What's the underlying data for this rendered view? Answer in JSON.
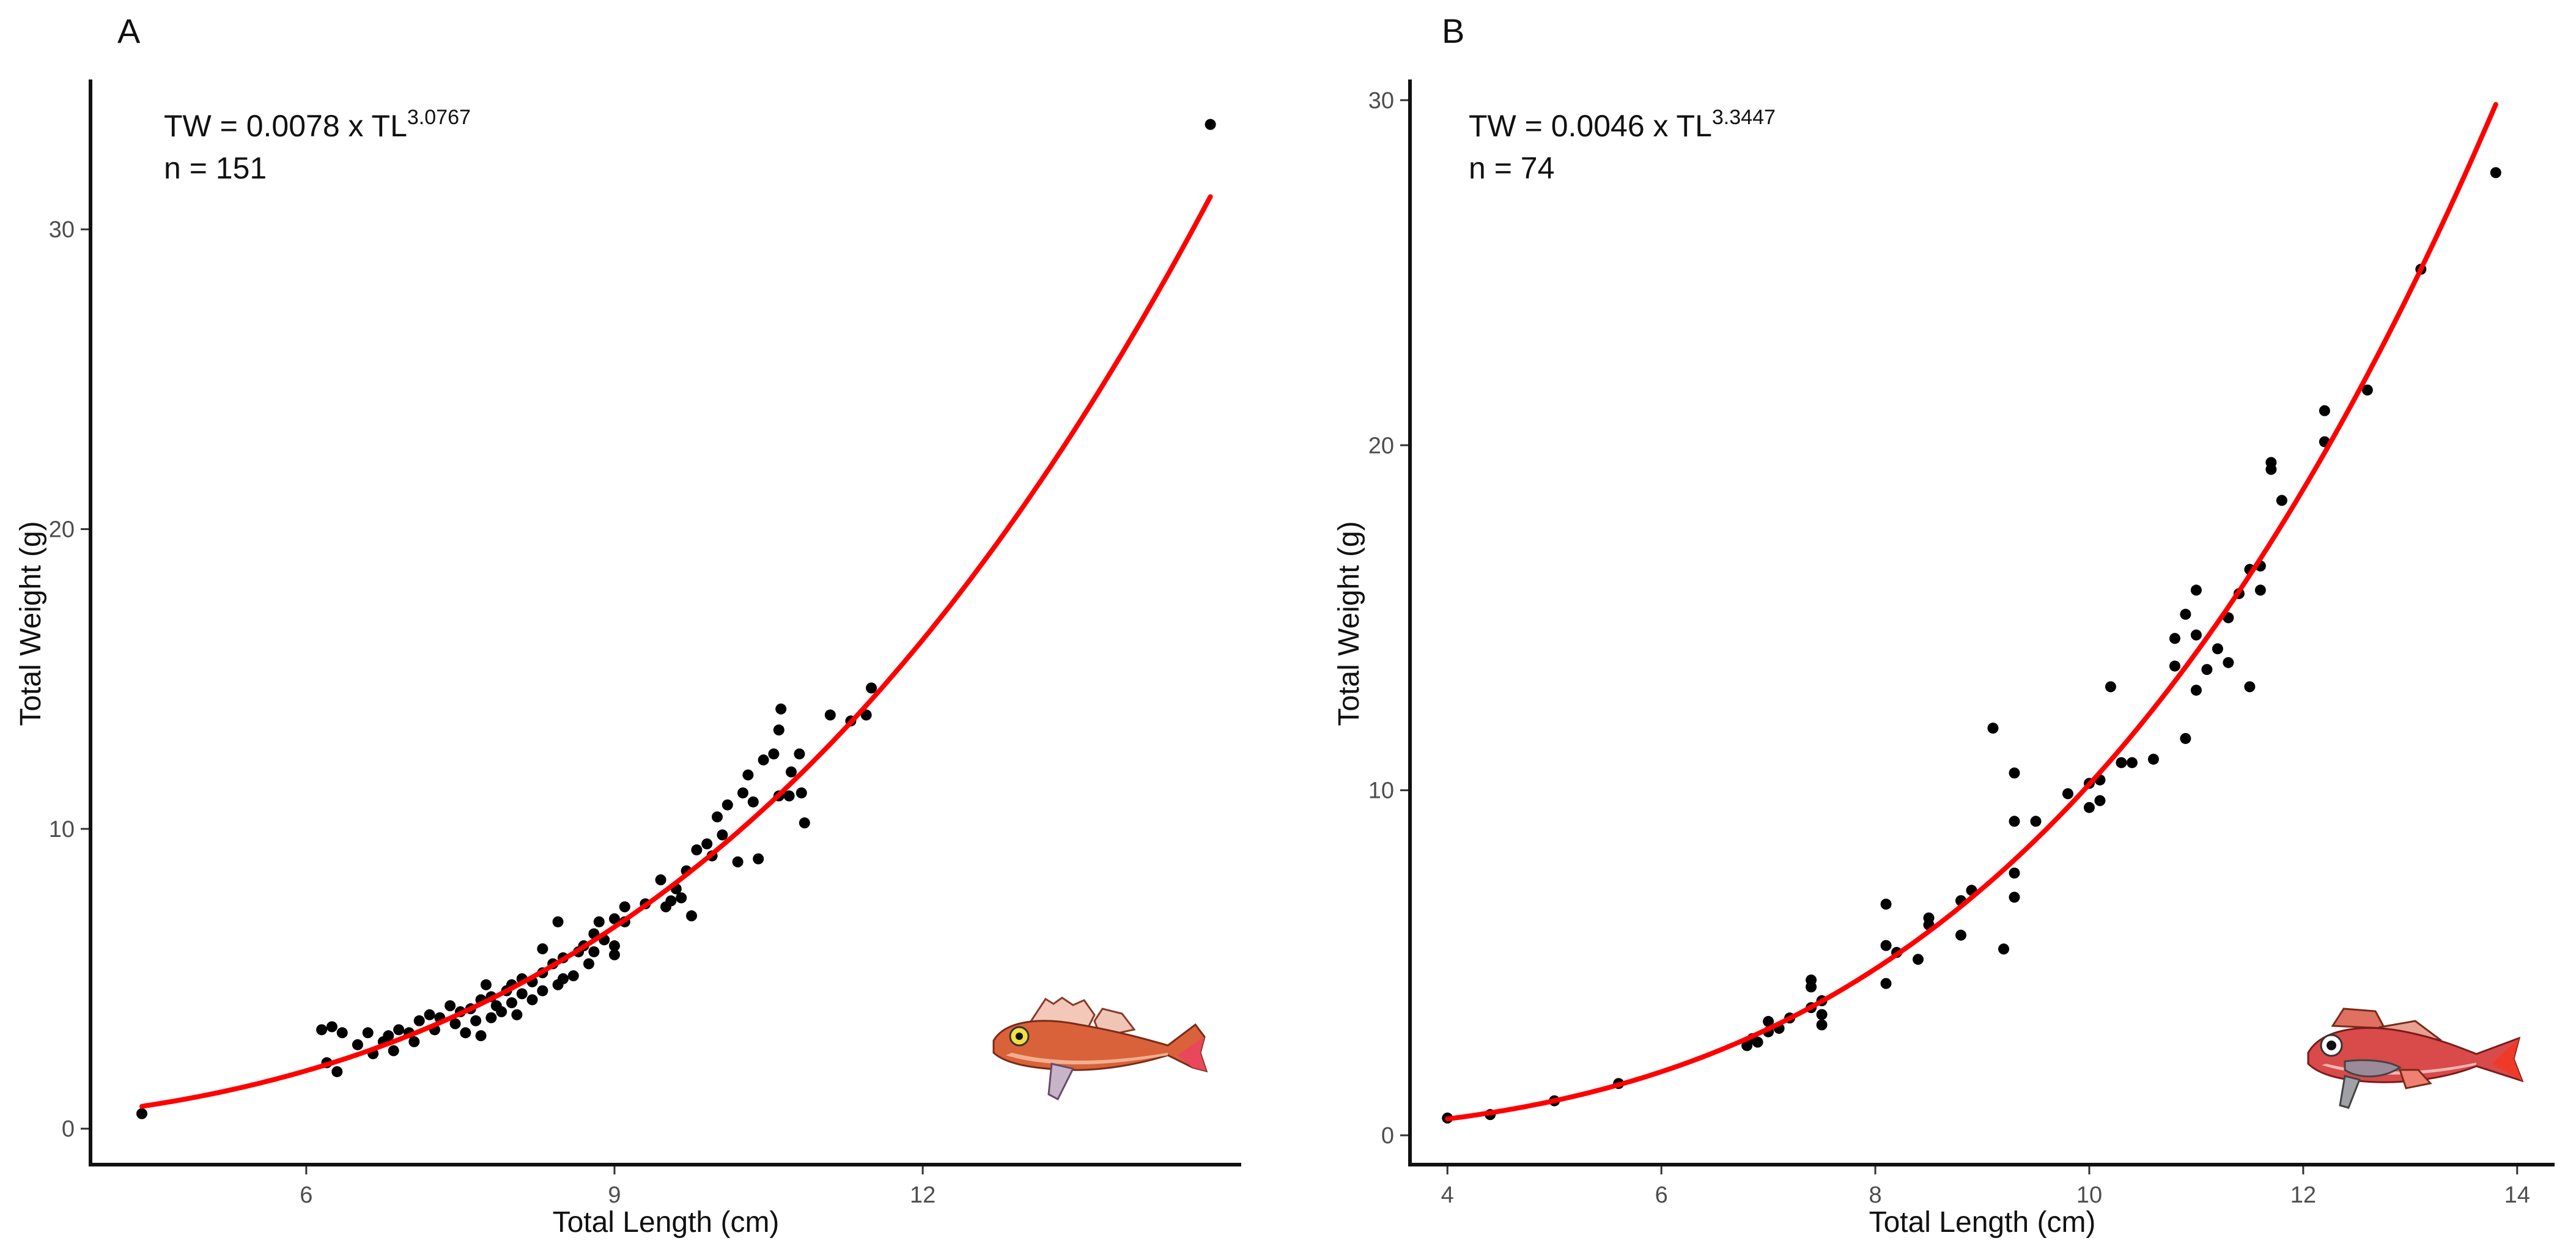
{
  "figure": {
    "palette": {
      "points": "#000000",
      "fit": "#ff0000",
      "fish_a": "#d9623a",
      "fish_b": "#d94a4a"
    }
  },
  "chart_data": [
    {
      "type": "scatter",
      "panel_label": "A",
      "xlabel": "Total Length (cm)",
      "ylabel": "Total Weight (g)",
      "xlim": [
        3.9,
        15.1
      ],
      "ylim": [
        -1.2,
        35.0
      ],
      "xticks": [
        6,
        9,
        12
      ],
      "yticks": [
        0,
        10,
        20,
        30
      ],
      "equation": {
        "prefix": "TW = 0.0078 x TL",
        "exponent": "3.0767"
      },
      "n_label": "n = 151",
      "fit": {
        "a": 0.0078,
        "b": 3.0767,
        "x_start": 4.4,
        "x_end": 14.8
      },
      "decoration_icon": "gurnard-fish-illustration",
      "points": [
        [
          4.4,
          0.5
        ],
        [
          6.15,
          3.3
        ],
        [
          6.2,
          2.2
        ],
        [
          6.25,
          3.4
        ],
        [
          6.3,
          1.9
        ],
        [
          6.35,
          3.2
        ],
        [
          6.5,
          2.8
        ],
        [
          6.6,
          3.2
        ],
        [
          6.65,
          2.5
        ],
        [
          6.75,
          2.9
        ],
        [
          6.8,
          3.1
        ],
        [
          6.85,
          2.6
        ],
        [
          6.9,
          3.3
        ],
        [
          7.0,
          3.2
        ],
        [
          7.05,
          2.9
        ],
        [
          7.1,
          3.6
        ],
        [
          7.2,
          3.8
        ],
        [
          7.25,
          3.3
        ],
        [
          7.3,
          3.7
        ],
        [
          7.4,
          4.1
        ],
        [
          7.45,
          3.5
        ],
        [
          7.5,
          3.9
        ],
        [
          7.55,
          3.2
        ],
        [
          7.6,
          4.0
        ],
        [
          7.65,
          3.6
        ],
        [
          7.7,
          3.1
        ],
        [
          7.7,
          4.3
        ],
        [
          7.75,
          4.8
        ],
        [
          7.8,
          3.7
        ],
        [
          7.8,
          4.4
        ],
        [
          7.85,
          4.1
        ],
        [
          7.9,
          3.9
        ],
        [
          7.95,
          4.6
        ],
        [
          8.0,
          4.2
        ],
        [
          8.0,
          4.8
        ],
        [
          8.05,
          3.8
        ],
        [
          8.1,
          5.0
        ],
        [
          8.1,
          4.5
        ],
        [
          8.2,
          4.3
        ],
        [
          8.2,
          4.9
        ],
        [
          8.3,
          5.2
        ],
        [
          8.3,
          4.6
        ],
        [
          8.3,
          6.0
        ],
        [
          8.4,
          5.5
        ],
        [
          8.45,
          4.8
        ],
        [
          8.45,
          6.9
        ],
        [
          8.5,
          5.0
        ],
        [
          8.5,
          5.7
        ],
        [
          8.6,
          5.1
        ],
        [
          8.65,
          5.9
        ],
        [
          8.7,
          6.1
        ],
        [
          8.75,
          5.5
        ],
        [
          8.8,
          6.5
        ],
        [
          8.8,
          5.9
        ],
        [
          8.85,
          6.9
        ],
        [
          8.9,
          6.3
        ],
        [
          9.0,
          6.1
        ],
        [
          9.0,
          7.0
        ],
        [
          9.0,
          5.8
        ],
        [
          9.1,
          6.9
        ],
        [
          9.1,
          7.4
        ],
        [
          9.3,
          7.5
        ],
        [
          9.45,
          8.3
        ],
        [
          9.5,
          7.4
        ],
        [
          9.55,
          7.6
        ],
        [
          9.6,
          8.0
        ],
        [
          9.65,
          7.7
        ],
        [
          9.7,
          8.6
        ],
        [
          9.75,
          7.1
        ],
        [
          9.8,
          9.3
        ],
        [
          9.9,
          9.5
        ],
        [
          9.95,
          9.1
        ],
        [
          10.0,
          10.4
        ],
        [
          10.05,
          9.8
        ],
        [
          10.1,
          10.8
        ],
        [
          10.2,
          8.9
        ],
        [
          10.25,
          11.2
        ],
        [
          10.3,
          11.8
        ],
        [
          10.35,
          10.9
        ],
        [
          10.4,
          9.0
        ],
        [
          10.45,
          12.3
        ],
        [
          10.55,
          12.5
        ],
        [
          10.6,
          11.1
        ],
        [
          10.6,
          13.3
        ],
        [
          10.62,
          14.0
        ],
        [
          10.7,
          11.1
        ],
        [
          10.72,
          11.9
        ],
        [
          10.8,
          12.5
        ],
        [
          10.82,
          11.2
        ],
        [
          10.85,
          10.2
        ],
        [
          11.1,
          13.8
        ],
        [
          11.3,
          13.6
        ],
        [
          11.45,
          13.8
        ],
        [
          11.5,
          14.7
        ],
        [
          14.8,
          33.5
        ]
      ]
    },
    {
      "type": "scatter",
      "panel_label": "B",
      "xlabel": "Total Length (cm)",
      "ylabel": "Total Weight (g)",
      "xlim": [
        3.65,
        14.35
      ],
      "ylim": [
        -0.85,
        30.6
      ],
      "xticks": [
        4,
        6,
        8,
        10,
        12,
        14
      ],
      "yticks": [
        0,
        10,
        20,
        30
      ],
      "equation": {
        "prefix": "TW = 0.0046 x TL",
        "exponent": "3.3447"
      },
      "n_label": "n = 74",
      "fit": {
        "a": 0.0046,
        "b": 3.3447,
        "x_start": 4.0,
        "x_end": 13.8
      },
      "decoration_icon": "redfish-illustration",
      "points": [
        [
          4.0,
          0.5
        ],
        [
          4.4,
          0.6
        ],
        [
          5.0,
          1.0
        ],
        [
          5.6,
          1.5
        ],
        [
          6.8,
          2.6
        ],
        [
          6.85,
          2.8
        ],
        [
          6.9,
          2.7
        ],
        [
          7.0,
          3.0
        ],
        [
          7.0,
          3.3
        ],
        [
          7.1,
          3.1
        ],
        [
          7.2,
          3.4
        ],
        [
          7.4,
          3.7
        ],
        [
          7.4,
          4.3
        ],
        [
          7.4,
          4.5
        ],
        [
          7.5,
          3.5
        ],
        [
          7.5,
          3.9
        ],
        [
          7.5,
          3.2
        ],
        [
          8.1,
          4.4
        ],
        [
          8.1,
          5.5
        ],
        [
          8.1,
          6.7
        ],
        [
          8.2,
          5.3
        ],
        [
          8.4,
          5.1
        ],
        [
          8.5,
          6.3
        ],
        [
          8.5,
          6.1
        ],
        [
          8.8,
          6.8
        ],
        [
          8.8,
          5.8
        ],
        [
          8.9,
          7.1
        ],
        [
          9.1,
          11.8
        ],
        [
          9.2,
          5.4
        ],
        [
          9.3,
          7.6
        ],
        [
          9.3,
          6.9
        ],
        [
          9.3,
          9.1
        ],
        [
          9.3,
          10.5
        ],
        [
          9.5,
          9.1
        ],
        [
          9.8,
          9.9
        ],
        [
          10.0,
          9.5
        ],
        [
          10.0,
          10.2
        ],
        [
          10.1,
          10.3
        ],
        [
          10.1,
          9.7
        ],
        [
          10.2,
          13.0
        ],
        [
          10.3,
          10.8
        ],
        [
          10.4,
          10.8
        ],
        [
          10.6,
          10.9
        ],
        [
          10.8,
          13.6
        ],
        [
          10.8,
          14.4
        ],
        [
          10.9,
          15.1
        ],
        [
          10.9,
          11.5
        ],
        [
          11.0,
          12.9
        ],
        [
          11.0,
          14.5
        ],
        [
          11.0,
          15.8
        ],
        [
          11.1,
          13.5
        ],
        [
          11.2,
          14.1
        ],
        [
          11.3,
          13.7
        ],
        [
          11.3,
          15.0
        ],
        [
          11.4,
          15.7
        ],
        [
          11.5,
          13.0
        ],
        [
          11.5,
          16.4
        ],
        [
          11.6,
          15.8
        ],
        [
          11.6,
          16.5
        ],
        [
          11.7,
          19.3
        ],
        [
          11.7,
          19.5
        ],
        [
          11.8,
          18.4
        ],
        [
          12.2,
          20.1
        ],
        [
          12.2,
          21.0
        ],
        [
          12.6,
          21.6
        ],
        [
          13.1,
          25.1
        ],
        [
          13.8,
          27.9
        ]
      ]
    }
  ]
}
